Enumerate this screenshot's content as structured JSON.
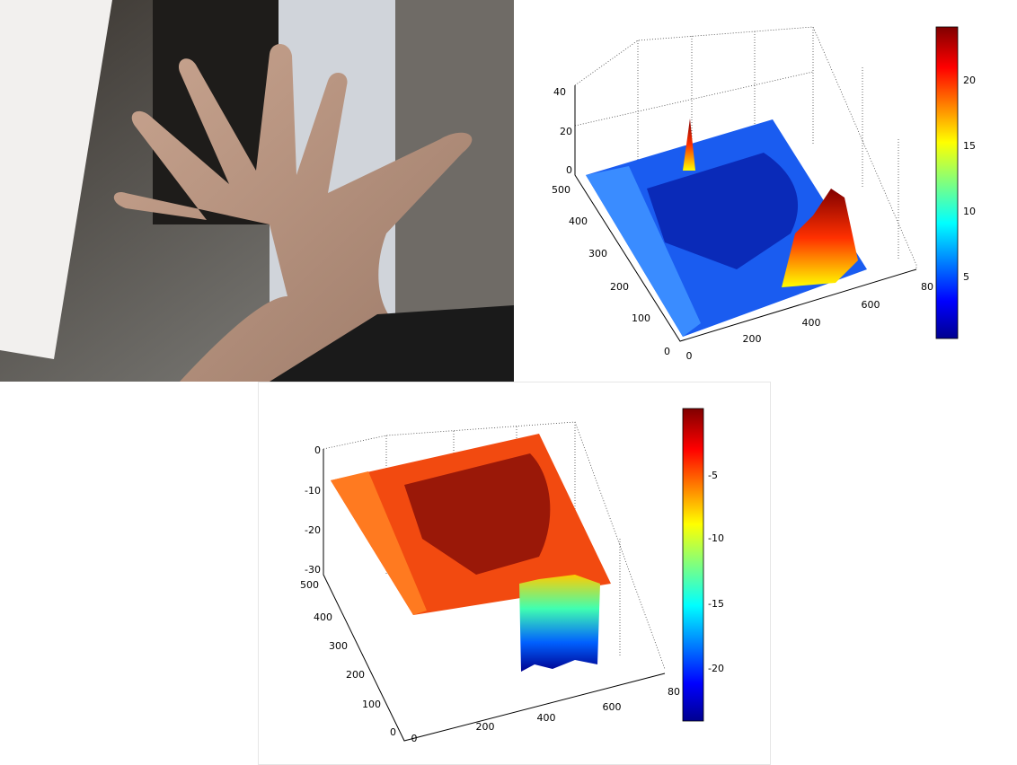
{
  "plot_top": {
    "z_ticks": [
      "40",
      "20",
      "0"
    ],
    "y_ticks": [
      "500",
      "400",
      "300",
      "200",
      "100",
      "0"
    ],
    "x_ticks": [
      "0",
      "200",
      "400",
      "600",
      "80"
    ],
    "colorbar_ticks": [
      "20",
      "15",
      "10",
      "5"
    ]
  },
  "plot_bottom": {
    "z_ticks": [
      "0",
      "-10",
      "-20",
      "-30"
    ],
    "y_ticks": [
      "500",
      "400",
      "300",
      "200",
      "100",
      "0"
    ],
    "x_ticks": [
      "0",
      "200",
      "400",
      "600",
      "80"
    ],
    "colorbar_ticks": [
      "-5",
      "-10",
      "-15",
      "-20"
    ]
  }
}
